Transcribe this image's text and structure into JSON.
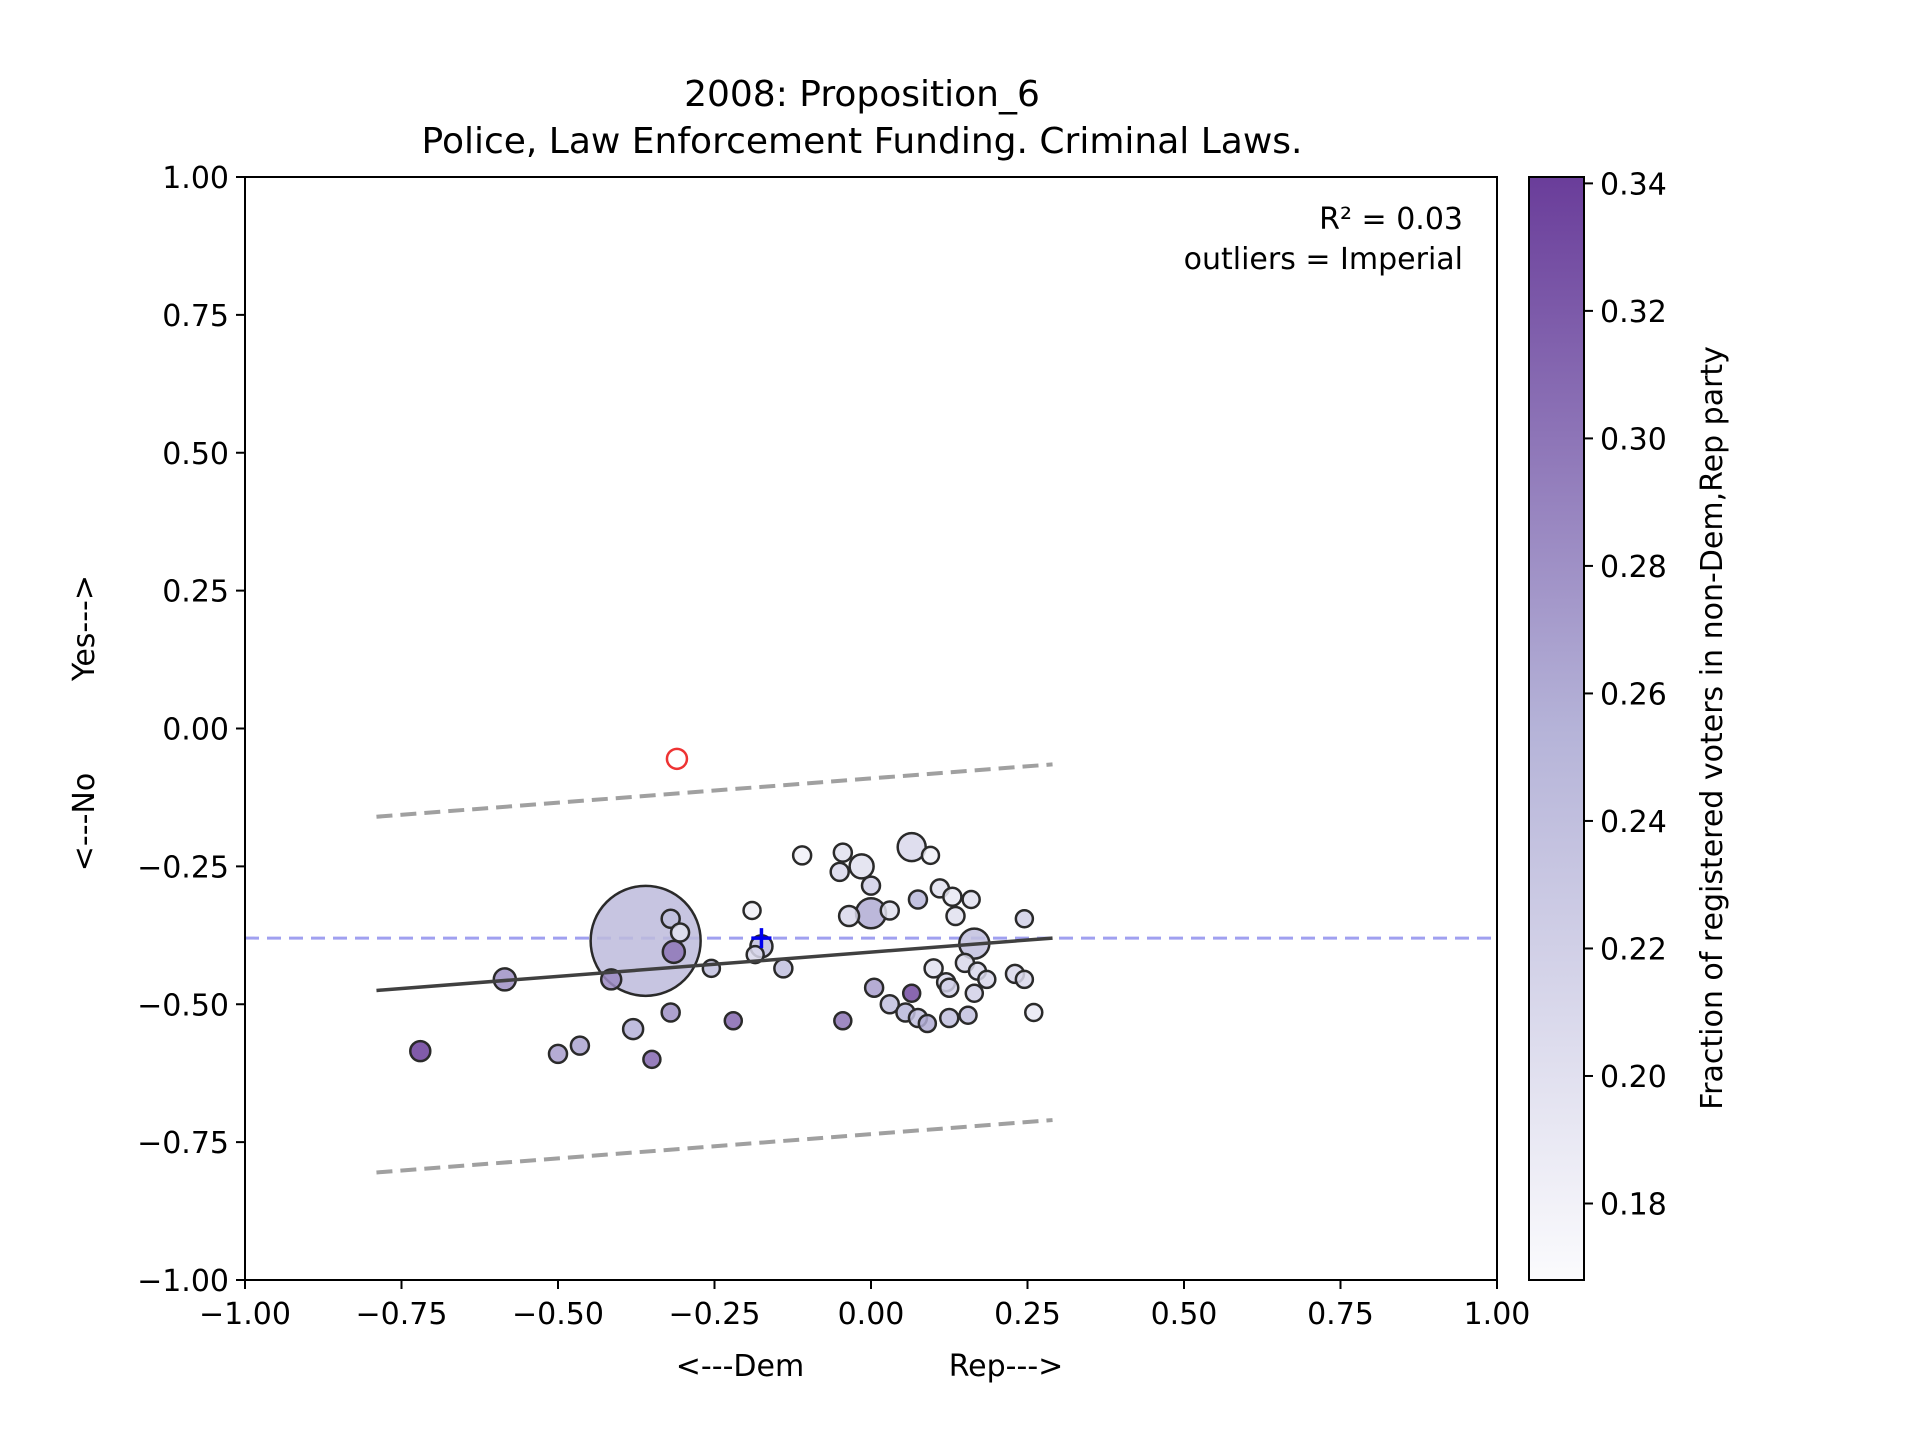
{
  "chart_data": {
    "type": "scatter",
    "title": "2008: Proposition_6",
    "subtitle": "Police, Law Enforcement Funding. Criminal Laws.",
    "xlabel_left": "<---Dem",
    "xlabel_right": "Rep--->",
    "ylabel_bottom": "<---No",
    "ylabel_top": "Yes--->",
    "xlim": [
      -1.0,
      1.0
    ],
    "ylim": [
      -1.0,
      1.0
    ],
    "xticks": [
      -1.0,
      -0.75,
      -0.5,
      -0.25,
      0.0,
      0.25,
      0.5,
      0.75,
      1.0
    ],
    "xtick_labels": [
      "−1.00",
      "−0.75",
      "−0.50",
      "−0.25",
      "0.00",
      "0.25",
      "0.50",
      "0.75",
      "1.00"
    ],
    "yticks": [
      1.0,
      0.75,
      0.5,
      0.25,
      0.0,
      -0.25,
      -0.5,
      -0.75,
      -1.0
    ],
    "ytick_labels": [
      "1.00",
      "0.75",
      "0.50",
      "0.25",
      "0.00",
      "−0.25",
      "−0.50",
      "−0.75",
      "−1.00"
    ],
    "annotation_r2": "R² = 0.03",
    "annotation_outliers": "outliers = Imperial",
    "grid": false,
    "colorbar": {
      "label": "Fraction of registered voters in non-Dem,Rep party",
      "range": [
        0.168,
        0.341
      ],
      "ticks": [
        0.18,
        0.2,
        0.22,
        0.24,
        0.26,
        0.28,
        0.3,
        0.32,
        0.34
      ],
      "tick_labels": [
        "0.18",
        "0.20",
        "0.22",
        "0.24",
        "0.26",
        "0.28",
        "0.30",
        "0.32",
        "0.34"
      ],
      "color_low": "#fbfbfd",
      "color_high": "#6a3d9a"
    },
    "hline_y": -0.38,
    "hline_color": "#a0a0f0",
    "fit_line": {
      "x": [
        -0.79,
        0.29
      ],
      "y": [
        -0.475,
        -0.38
      ]
    },
    "upper_band": {
      "x": [
        -0.79,
        0.29
      ],
      "y": [
        -0.16,
        -0.065
      ]
    },
    "lower_band": {
      "x": [
        -0.79,
        0.29
      ],
      "y": [
        -0.805,
        -0.71
      ]
    },
    "outlier": {
      "x": -0.31,
      "y": -0.055,
      "color": "#ee3333"
    },
    "state_marker": {
      "x": -0.175,
      "y": -0.38,
      "color": "#0000ee"
    },
    "points": [
      {
        "x": -0.36,
        "y": -0.385,
        "c": 0.245,
        "s": 55
      },
      {
        "x": -0.72,
        "y": -0.585,
        "c": 0.34,
        "s": 10
      },
      {
        "x": -0.585,
        "y": -0.455,
        "c": 0.28,
        "s": 11
      },
      {
        "x": -0.5,
        "y": -0.59,
        "c": 0.27,
        "s": 9
      },
      {
        "x": -0.465,
        "y": -0.575,
        "c": 0.265,
        "s": 9
      },
      {
        "x": -0.415,
        "y": -0.455,
        "c": 0.285,
        "s": 10
      },
      {
        "x": -0.38,
        "y": -0.545,
        "c": 0.255,
        "s": 10
      },
      {
        "x": -0.35,
        "y": -0.6,
        "c": 0.31,
        "s": 8.5
      },
      {
        "x": -0.32,
        "y": -0.515,
        "c": 0.28,
        "s": 9
      },
      {
        "x": -0.32,
        "y": -0.345,
        "c": 0.24,
        "s": 9
      },
      {
        "x": -0.305,
        "y": -0.37,
        "c": 0.2,
        "s": 9
      },
      {
        "x": -0.315,
        "y": -0.405,
        "c": 0.3,
        "s": 11
      },
      {
        "x": -0.255,
        "y": -0.435,
        "c": 0.24,
        "s": 8.5
      },
      {
        "x": -0.22,
        "y": -0.53,
        "c": 0.31,
        "s": 8.5
      },
      {
        "x": -0.19,
        "y": -0.33,
        "c": 0.18,
        "s": 8.5
      },
      {
        "x": -0.185,
        "y": -0.41,
        "c": 0.21,
        "s": 8.5
      },
      {
        "x": -0.175,
        "y": -0.395,
        "c": 0.24,
        "s": 11
      },
      {
        "x": -0.14,
        "y": -0.435,
        "c": 0.24,
        "s": 9
      },
      {
        "x": -0.11,
        "y": -0.23,
        "c": 0.18,
        "s": 9
      },
      {
        "x": -0.045,
        "y": -0.225,
        "c": 0.2,
        "s": 9
      },
      {
        "x": -0.045,
        "y": -0.53,
        "c": 0.3,
        "s": 8.5
      },
      {
        "x": -0.05,
        "y": -0.26,
        "c": 0.21,
        "s": 9
      },
      {
        "x": -0.035,
        "y": -0.34,
        "c": 0.21,
        "s": 10
      },
      {
        "x": -0.015,
        "y": -0.25,
        "c": 0.2,
        "s": 12
      },
      {
        "x": 0.0,
        "y": -0.285,
        "c": 0.22,
        "s": 9
      },
      {
        "x": 0.0,
        "y": -0.335,
        "c": 0.26,
        "s": 15
      },
      {
        "x": 0.005,
        "y": -0.47,
        "c": 0.27,
        "s": 9
      },
      {
        "x": 0.03,
        "y": -0.5,
        "c": 0.24,
        "s": 9
      },
      {
        "x": 0.03,
        "y": -0.33,
        "c": 0.2,
        "s": 9
      },
      {
        "x": 0.055,
        "y": -0.515,
        "c": 0.25,
        "s": 9
      },
      {
        "x": 0.065,
        "y": -0.215,
        "c": 0.21,
        "s": 14
      },
      {
        "x": 0.065,
        "y": -0.48,
        "c": 0.33,
        "s": 8.5
      },
      {
        "x": 0.075,
        "y": -0.31,
        "c": 0.25,
        "s": 9
      },
      {
        "x": 0.075,
        "y": -0.525,
        "c": 0.24,
        "s": 9
      },
      {
        "x": 0.09,
        "y": -0.535,
        "c": 0.26,
        "s": 8.5
      },
      {
        "x": 0.095,
        "y": -0.23,
        "c": 0.18,
        "s": 8.5
      },
      {
        "x": 0.1,
        "y": -0.435,
        "c": 0.2,
        "s": 9
      },
      {
        "x": 0.11,
        "y": -0.29,
        "c": 0.2,
        "s": 9
      },
      {
        "x": 0.12,
        "y": -0.46,
        "c": 0.21,
        "s": 9
      },
      {
        "x": 0.125,
        "y": -0.525,
        "c": 0.24,
        "s": 9
      },
      {
        "x": 0.13,
        "y": -0.305,
        "c": 0.19,
        "s": 9
      },
      {
        "x": 0.135,
        "y": -0.34,
        "c": 0.2,
        "s": 9
      },
      {
        "x": 0.125,
        "y": -0.47,
        "c": 0.22,
        "s": 9
      },
      {
        "x": 0.15,
        "y": -0.425,
        "c": 0.21,
        "s": 9
      },
      {
        "x": 0.155,
        "y": -0.52,
        "c": 0.24,
        "s": 8.5
      },
      {
        "x": 0.16,
        "y": -0.31,
        "c": 0.2,
        "s": 8.5
      },
      {
        "x": 0.165,
        "y": -0.39,
        "c": 0.24,
        "s": 15
      },
      {
        "x": 0.17,
        "y": -0.44,
        "c": 0.21,
        "s": 8.5
      },
      {
        "x": 0.165,
        "y": -0.48,
        "c": 0.22,
        "s": 8.5
      },
      {
        "x": 0.185,
        "y": -0.455,
        "c": 0.21,
        "s": 8.5
      },
      {
        "x": 0.23,
        "y": -0.445,
        "c": 0.21,
        "s": 9
      },
      {
        "x": 0.245,
        "y": -0.345,
        "c": 0.22,
        "s": 8.5
      },
      {
        "x": 0.245,
        "y": -0.455,
        "c": 0.21,
        "s": 8.5
      },
      {
        "x": 0.26,
        "y": -0.515,
        "c": 0.19,
        "s": 8.5
      }
    ]
  }
}
